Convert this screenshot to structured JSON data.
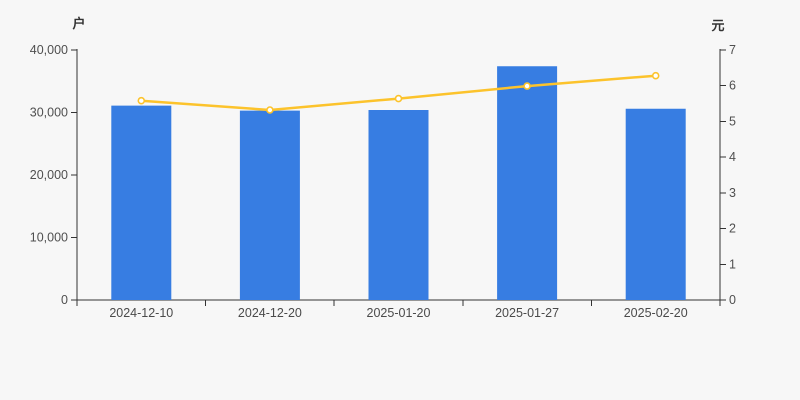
{
  "page": {
    "background_color": "#f7f7f7"
  },
  "chart_data": {
    "type": "combo",
    "title": "",
    "legend": "none",
    "grid": false,
    "categories": [
      "2024-12-10",
      "2024-12-20",
      "2025-01-20",
      "2025-01-27",
      "2025-02-20"
    ],
    "series": [
      {
        "name": "户",
        "type": "bar",
        "yaxis": "left",
        "values": [
          31100,
          30300,
          30400,
          37400,
          30600
        ],
        "color": "#377de2"
      },
      {
        "name": "元",
        "type": "line",
        "yaxis": "right",
        "values": [
          5.58,
          5.32,
          5.64,
          5.99,
          6.28
        ],
        "color": "#fcc32c",
        "marker": "hollow-circle",
        "marker_fill": "#ffffff"
      }
    ],
    "left_axis": {
      "title": "户",
      "min": 0,
      "max": 40000,
      "tick_interval": 10000,
      "tick_labels": [
        "0",
        "10,000",
        "20,000",
        "30,000",
        "40,000"
      ]
    },
    "right_axis": {
      "title": "元",
      "min": 0,
      "max": 7,
      "tick_interval": 1,
      "tick_labels": [
        "0",
        "1",
        "2",
        "3",
        "4",
        "5",
        "6",
        "7"
      ]
    },
    "axis_color": "#333333",
    "tick_label_color": "#4f4f4f"
  }
}
